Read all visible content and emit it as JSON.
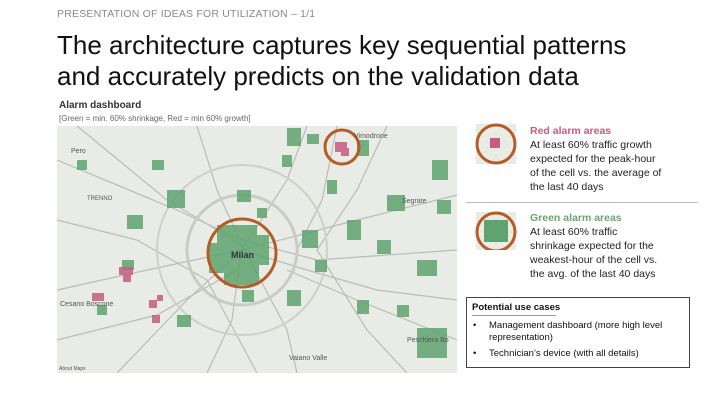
{
  "header": {
    "section": "PRESENTATION OF IDEAS FOR UTILIZATION – 1/1",
    "title_lines": [
      "The architecture captures key sequential patterns",
      "and accurately predicts on the validation data"
    ]
  },
  "map": {
    "title": "Alarm dashboard",
    "legend": "[Green = min. 60% shrinkage, Red = min 60% growth]",
    "labels": [
      "Pero",
      "Vimodrone",
      "TRENNO",
      "Milan",
      "Segrate",
      "Cesano Boscone",
      "Peschiera Bo",
      "Vaiano Valle",
      "About Maps"
    ]
  },
  "alarm_types": [
    {
      "title": "Red alarm areas",
      "lines": [
        "At least 60% traffic growth",
        "expected for the peak-hour",
        "of the cell vs. the average of",
        "the last 40 days"
      ]
    },
    {
      "title": "Green alarm areas",
      "lines": [
        "At least 60% traffic",
        "shrinkage expected for the",
        "weakest-hour of the cell vs.",
        "the avg. of the last 40 days"
      ]
    }
  ],
  "use_cases": {
    "title": "Potential use cases",
    "items": [
      [
        "Management dashboard (more high level",
        "representation)"
      ],
      [
        "Technician’s device (with all details)"
      ]
    ]
  }
}
